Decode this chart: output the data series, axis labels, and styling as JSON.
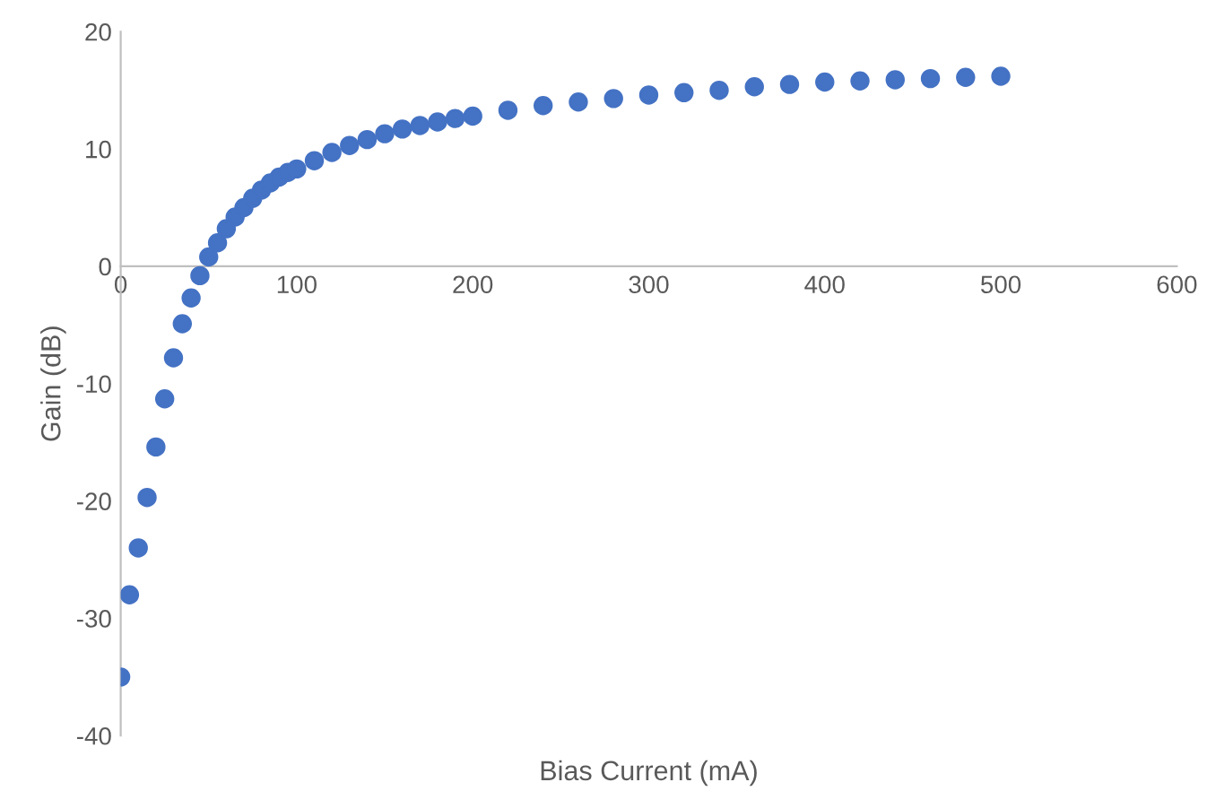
{
  "chart_data": {
    "type": "scatter",
    "xlabel": "Bias Current (mA)",
    "ylabel": "Gain (dB)",
    "x": [
      0,
      5,
      10,
      15,
      20,
      25,
      30,
      35,
      40,
      45,
      50,
      55,
      60,
      65,
      70,
      75,
      80,
      85,
      90,
      95,
      100,
      110,
      120,
      130,
      140,
      150,
      160,
      170,
      180,
      190,
      200,
      220,
      240,
      260,
      280,
      300,
      320,
      340,
      360,
      380,
      400,
      420,
      440,
      460,
      480,
      500
    ],
    "series": [
      {
        "color": "#4472c4",
        "values": [
          -35,
          -28,
          -24,
          -19.7,
          -15.4,
          -11.3,
          -7.8,
          -4.9,
          -2.7,
          -0.8,
          0.8,
          2.0,
          3.2,
          4.2,
          5.0,
          5.8,
          6.5,
          7.1,
          7.6,
          8.0,
          8.3,
          9.0,
          9.7,
          10.3,
          10.8,
          11.3,
          11.7,
          12.0,
          12.3,
          12.6,
          12.8,
          13.3,
          13.7,
          14.0,
          14.3,
          14.6,
          14.8,
          15.0,
          15.3,
          15.5,
          15.7,
          15.8,
          15.9,
          16.0,
          16.1,
          16.2
        ]
      }
    ],
    "xlim": [
      0,
      600
    ],
    "xticks": [
      0,
      100,
      200,
      300,
      400,
      500,
      600
    ],
    "ylim": [
      -40,
      20
    ],
    "yticks": [
      -40,
      -30,
      -20,
      -10,
      0,
      10,
      20
    ],
    "marker": "circle",
    "grid": false,
    "legend": false
  }
}
